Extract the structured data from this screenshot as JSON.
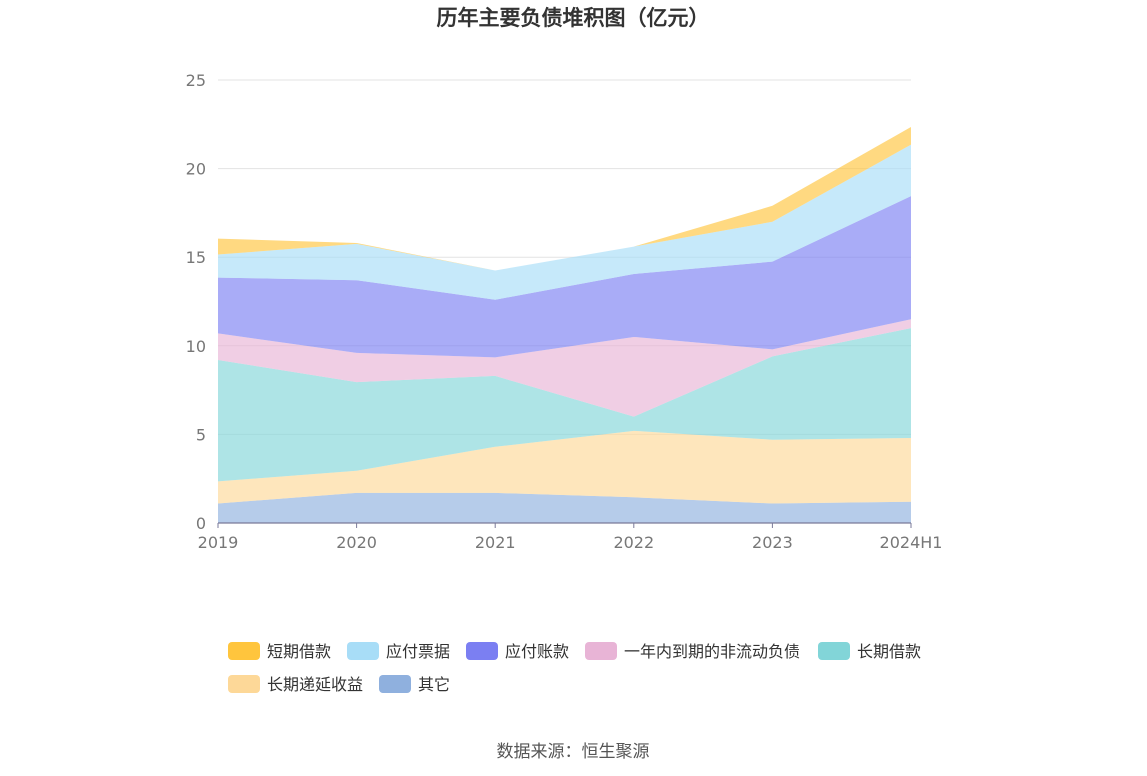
{
  "chart_data": {
    "type": "area",
    "stacked": true,
    "title": "历年主要负债堆积图（亿元）",
    "categories": [
      "2019",
      "2020",
      "2021",
      "2022",
      "2023",
      "2024H1"
    ],
    "ylim": [
      0,
      25
    ],
    "yticks": [
      0,
      5,
      10,
      15,
      20,
      25
    ],
    "grid": true,
    "legend_position": "bottom",
    "series": [
      {
        "name": "其它",
        "color": "#8fb0de",
        "values": [
          1.1,
          1.7,
          1.7,
          1.45,
          1.1,
          1.2
        ]
      },
      {
        "name": "长期递延收益",
        "color": "#fdd898",
        "values": [
          1.25,
          1.25,
          2.6,
          3.75,
          3.6,
          3.6
        ]
      },
      {
        "name": "长期借款",
        "color": "#82d5d8",
        "values": [
          6.85,
          5.0,
          4.0,
          0.8,
          4.7,
          6.2
        ]
      },
      {
        "name": "一年内到期的非流动负债",
        "color": "#e8b4d6",
        "values": [
          1.5,
          1.65,
          1.05,
          4.5,
          0.4,
          0.5
        ]
      },
      {
        "name": "应付账款",
        "color": "#7b7ff2",
        "values": [
          3.15,
          4.1,
          3.25,
          3.55,
          4.95,
          6.95
        ]
      },
      {
        "name": "应付票据",
        "color": "#a8ddf7",
        "values": [
          1.3,
          2.05,
          1.65,
          1.55,
          2.25,
          2.9
        ]
      },
      {
        "name": "短期借款",
        "color": "#ffc53d",
        "values": [
          0.9,
          0.05,
          0.0,
          0.0,
          0.9,
          1.0
        ]
      }
    ],
    "legend_order": [
      "短期借款",
      "应付票据",
      "应付账款",
      "一年内到期的非流动负债",
      "长期借款",
      "长期递延收益",
      "其它"
    ]
  },
  "source": "数据来源：恒生聚源"
}
